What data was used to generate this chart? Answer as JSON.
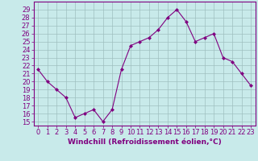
{
  "x": [
    0,
    1,
    2,
    3,
    4,
    5,
    6,
    7,
    8,
    9,
    10,
    11,
    12,
    13,
    14,
    15,
    16,
    17,
    18,
    19,
    20,
    21,
    22,
    23
  ],
  "y": [
    21.5,
    20.0,
    19.0,
    18.0,
    15.5,
    16.0,
    16.5,
    15.0,
    16.5,
    21.5,
    24.5,
    25.0,
    25.5,
    26.5,
    28.0,
    29.0,
    27.5,
    25.0,
    25.5,
    26.0,
    23.0,
    22.5,
    21.0,
    19.5
  ],
  "line_color": "#800080",
  "marker": "D",
  "marker_size": 2.0,
  "bg_color": "#c8eaea",
  "grid_color": "#9fbfbf",
  "xlabel": "Windchill (Refroidissement éolien,°C)",
  "xlabel_fontsize": 6.5,
  "ylabel_ticks": [
    15,
    16,
    17,
    18,
    19,
    20,
    21,
    22,
    23,
    24,
    25,
    26,
    27,
    28,
    29
  ],
  "ylim": [
    14.5,
    30.0
  ],
  "xlim": [
    -0.5,
    23.5
  ],
  "tick_fontsize": 6.0,
  "spine_color": "#800080"
}
